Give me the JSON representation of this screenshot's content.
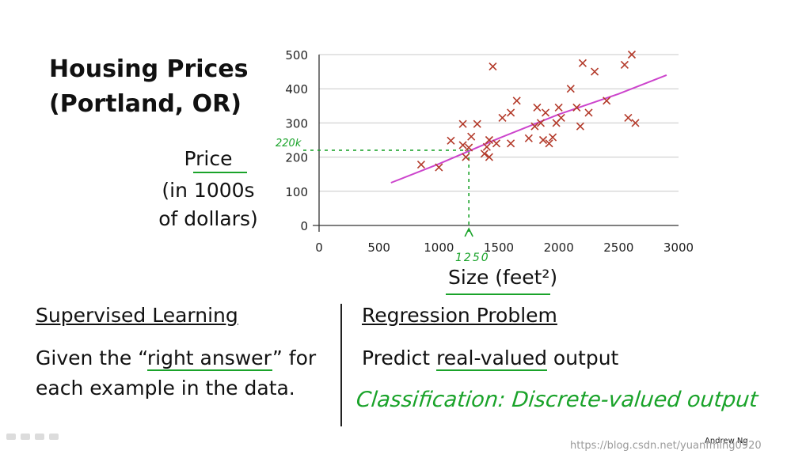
{
  "title": "Housing Prices\n(Portland, OR)",
  "ylabel_lines": [
    "Price",
    "(in 1000s",
    "of dollars)"
  ],
  "xlabel": "Size (feet²)",
  "left_section": {
    "heading": "Supervised Learning",
    "line1_pre": "Given the “",
    "line1_em": "right answer",
    "line1_post": "” for",
    "line2": "each example in the data."
  },
  "right_section": {
    "heading": "Regression Problem",
    "line_pre": "Predict ",
    "line_em": "real-valued",
    "line_post": " output",
    "handwriting": "Classification: Discrete-valued output"
  },
  "annotations": {
    "x_mark": "1250",
    "y_mark": "220k"
  },
  "credit": "Andrew Ng",
  "watermark": "https://blog.csdn.net/yuanfming0920",
  "colors": {
    "points": "#b33a2a",
    "fit_line": "#cc44cc",
    "annotation": "#1aa32a",
    "axis": "#333333",
    "grid": "#c8c8c8"
  },
  "chart_data": {
    "type": "scatter",
    "title": "",
    "xlabel": "Size (feet²)",
    "ylabel": "Price (in 1000s of dollars)",
    "xlim": [
      0,
      3000
    ],
    "ylim": [
      0,
      500
    ],
    "xticks": [
      0,
      500,
      1000,
      1500,
      2000,
      2500,
      3000
    ],
    "yticks": [
      0,
      100,
      200,
      300,
      400,
      500
    ],
    "grid": true,
    "points": [
      [
        852,
        178
      ],
      [
        1000,
        170
      ],
      [
        1100,
        248
      ],
      [
        1200,
        297
      ],
      [
        1200,
        235
      ],
      [
        1225,
        200
      ],
      [
        1250,
        228
      ],
      [
        1270,
        260
      ],
      [
        1320,
        297
      ],
      [
        1380,
        210
      ],
      [
        1400,
        230
      ],
      [
        1420,
        200
      ],
      [
        1420,
        250
      ],
      [
        1450,
        465
      ],
      [
        1480,
        240
      ],
      [
        1530,
        315
      ],
      [
        1600,
        330
      ],
      [
        1600,
        240
      ],
      [
        1650,
        365
      ],
      [
        1750,
        255
      ],
      [
        1800,
        290
      ],
      [
        1820,
        345
      ],
      [
        1850,
        300
      ],
      [
        1870,
        250
      ],
      [
        1890,
        330
      ],
      [
        1920,
        240
      ],
      [
        1950,
        258
      ],
      [
        1980,
        300
      ],
      [
        2000,
        345
      ],
      [
        2020,
        315
      ],
      [
        2100,
        400
      ],
      [
        2150,
        345
      ],
      [
        2180,
        290
      ],
      [
        2200,
        475
      ],
      [
        2250,
        330
      ],
      [
        2300,
        450
      ],
      [
        2400,
        365
      ],
      [
        2550,
        470
      ],
      [
        2580,
        315
      ],
      [
        2610,
        500
      ],
      [
        2640,
        300
      ]
    ],
    "fit_line": [
      [
        600,
        125
      ],
      [
        1000,
        180
      ],
      [
        1500,
        255
      ],
      [
        2000,
        325
      ],
      [
        2500,
        385
      ],
      [
        2900,
        440
      ]
    ],
    "guides": {
      "x": 1250,
      "y": 220
    }
  }
}
